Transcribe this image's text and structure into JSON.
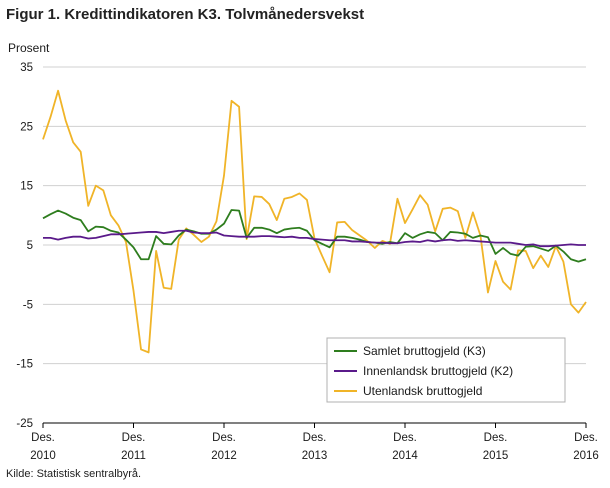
{
  "title": "Figur 1. Kredittindikatoren K3. Tolvmånedersvekst",
  "source": "Kilde: Statistisk sentralbyrå.",
  "colors": {
    "k3": "#2e7d1e",
    "k2": "#5a1a8a",
    "utl": "#f0b428",
    "grid": "#d0d0d0",
    "axis": "#000000"
  },
  "chart_data": {
    "type": "line",
    "ylabel": "Prosent",
    "ylim": [
      -25,
      35
    ],
    "yticks": [
      35,
      25,
      15,
      5,
      -5,
      -15,
      -25
    ],
    "grid": true,
    "legend_position": "bottom-right",
    "x_ticks": [
      {
        "month_index": 0,
        "top": "Des.",
        "bottom": "2010"
      },
      {
        "month_index": 12,
        "top": "Des.",
        "bottom": "2011"
      },
      {
        "month_index": 24,
        "top": "Des.",
        "bottom": "2012"
      },
      {
        "month_index": 36,
        "top": "Des.",
        "bottom": "2013"
      },
      {
        "month_index": 48,
        "top": "Des.",
        "bottom": "2014"
      },
      {
        "month_index": 60,
        "top": "Des.",
        "bottom": "2015"
      },
      {
        "month_index": 72,
        "top": "Des.",
        "bottom": "2016"
      }
    ],
    "series": [
      {
        "name": "Samlet bruttogjeld (K3)",
        "color_key": "k3",
        "values": [
          9.5,
          10.2,
          10.8,
          10.3,
          9.6,
          9.2,
          7.3,
          8.1,
          8.0,
          7.4,
          7.1,
          5.9,
          4.6,
          2.6,
          2.6,
          6.5,
          5.2,
          5.1,
          6.6,
          7.6,
          7.3,
          6.9,
          6.9,
          7.6,
          8.6,
          10.9,
          10.8,
          6.2,
          7.9,
          7.9,
          7.6,
          7.0,
          7.6,
          7.8,
          7.9,
          7.4,
          5.8,
          5.2,
          4.6,
          6.4,
          6.4,
          6.2,
          5.9,
          5.5,
          5.4,
          5.2,
          5.5,
          5.3,
          7.0,
          6.2,
          6.8,
          7.2,
          7.0,
          5.8,
          7.2,
          7.1,
          6.9,
          6.2,
          6.6,
          6.3,
          3.5,
          4.5,
          3.5,
          3.2,
          4.7,
          4.8,
          4.4,
          4.0,
          4.9,
          3.9,
          2.6,
          2.2,
          2.6
        ]
      },
      {
        "name": "Innenlandsk bruttogjeld (K2)",
        "color_key": "k2",
        "values": [
          6.2,
          6.2,
          5.9,
          6.2,
          6.4,
          6.4,
          6.1,
          6.2,
          6.5,
          6.8,
          6.8,
          6.9,
          7.0,
          7.1,
          7.2,
          7.2,
          7.0,
          7.2,
          7.4,
          7.4,
          7.1,
          7.0,
          7.0,
          7.1,
          6.6,
          6.5,
          6.4,
          6.4,
          6.4,
          6.5,
          6.5,
          6.4,
          6.3,
          6.4,
          6.2,
          6.2,
          6.0,
          5.9,
          5.8,
          5.8,
          5.8,
          5.6,
          5.6,
          5.5,
          5.4,
          5.4,
          5.3,
          5.3,
          5.5,
          5.6,
          5.5,
          5.8,
          5.6,
          5.8,
          5.9,
          5.7,
          5.8,
          5.7,
          5.6,
          5.5,
          5.4,
          5.4,
          5.4,
          5.2,
          5.0,
          5.1,
          4.8,
          4.8,
          4.9,
          5.0,
          5.1,
          5.0,
          5.0
        ]
      },
      {
        "name": "Utenlandsk bruttogjeld",
        "color_key": "utl",
        "values": [
          22.8,
          26.6,
          31.0,
          26.0,
          22.3,
          20.7,
          11.6,
          15.0,
          14.2,
          10.0,
          8.3,
          5.5,
          -2.7,
          -12.6,
          -13.1,
          4.0,
          -2.2,
          -2.4,
          5.9,
          7.8,
          6.7,
          5.5,
          6.4,
          9.0,
          16.7,
          29.3,
          28.3,
          6.0,
          13.2,
          13.1,
          11.9,
          9.2,
          12.8,
          13.1,
          13.7,
          12.6,
          6.1,
          3.2,
          0.4,
          8.8,
          8.9,
          7.5,
          6.6,
          5.7,
          4.5,
          5.7,
          5.2,
          12.8,
          8.7,
          11.0,
          13.4,
          11.8,
          7.3,
          11.1,
          11.3,
          10.7,
          6.2,
          10.5,
          6.6,
          -3.0,
          2.3,
          -1.2,
          -2.5,
          4.1,
          4.0,
          1.1,
          3.2,
          1.3,
          4.8,
          2.2,
          -5.0,
          -6.4,
          -4.6
        ]
      }
    ]
  }
}
